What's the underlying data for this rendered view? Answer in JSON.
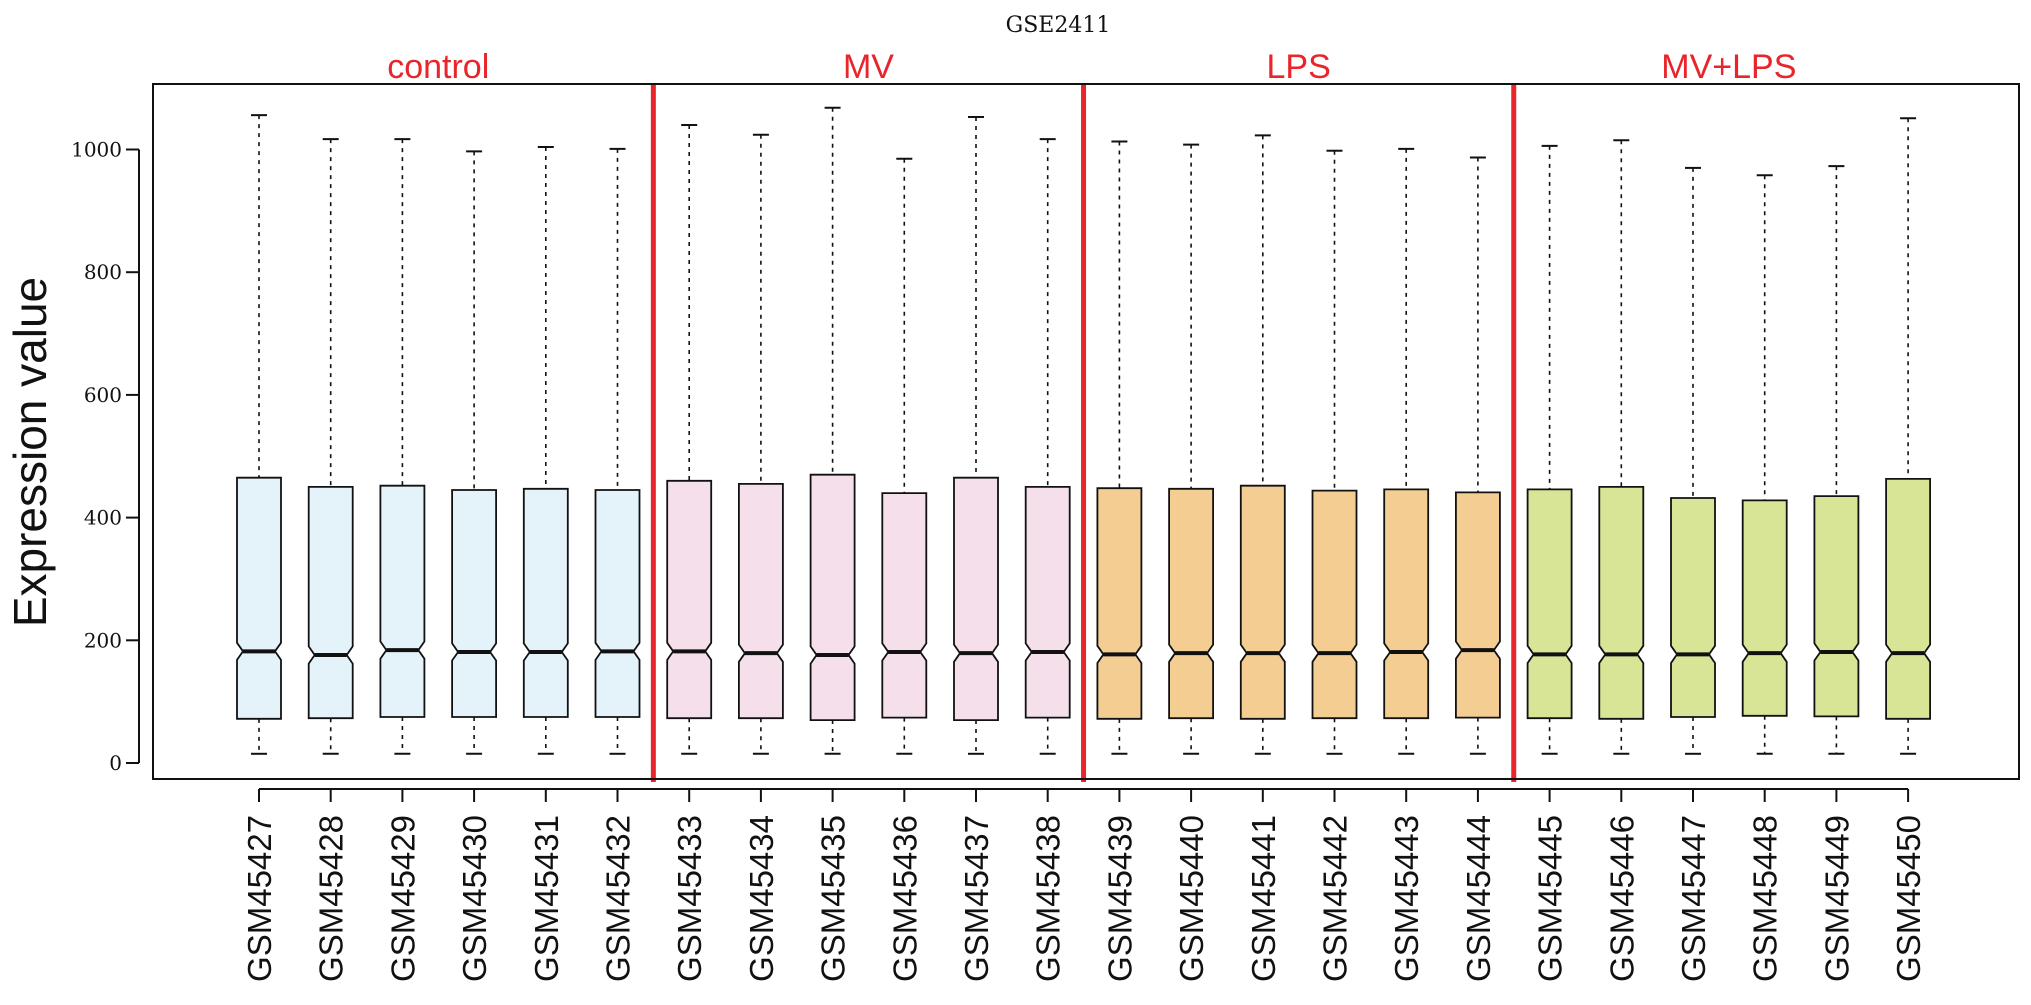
{
  "chart_data": {
    "type": "boxplot",
    "title": "GSE2411",
    "xlabel": "",
    "ylabel": "Expression value",
    "ylim": [
      -25,
      1115
    ],
    "yticks": [
      0,
      200,
      400,
      600,
      800,
      1000
    ],
    "grid": false,
    "legend": "none",
    "notched": true,
    "separator_color": "#e8252b",
    "groups": [
      {
        "label": "control",
        "color": "#e4f3fa",
        "samples": [
          0,
          5
        ]
      },
      {
        "label": "MV",
        "color": "#f4dfeb",
        "samples": [
          6,
          11
        ]
      },
      {
        "label": "LPS",
        "color": "#f4cd93",
        "samples": [
          12,
          17
        ]
      },
      {
        "label": "MV+LPS",
        "color": "#d8e496",
        "samples": [
          18,
          23
        ]
      }
    ],
    "categories": [
      "GSM45427",
      "GSM45428",
      "GSM45429",
      "GSM45430",
      "GSM45431",
      "GSM45432",
      "GSM45433",
      "GSM45434",
      "GSM45435",
      "GSM45436",
      "GSM45437",
      "GSM45438",
      "GSM45439",
      "GSM45440",
      "GSM45441",
      "GSM45442",
      "GSM45443",
      "GSM45444",
      "GSM45445",
      "GSM45446",
      "GSM45447",
      "GSM45448",
      "GSM45449",
      "GSM45450"
    ],
    "boxes": [
      {
        "min": 15,
        "q1": 72,
        "median": 182,
        "q3": 465,
        "max": 1056
      },
      {
        "min": 15,
        "q1": 73,
        "median": 176,
        "q3": 450,
        "max": 1017
      },
      {
        "min": 15,
        "q1": 75,
        "median": 184,
        "q3": 452,
        "max": 1017
      },
      {
        "min": 15,
        "q1": 75,
        "median": 181,
        "q3": 445,
        "max": 997
      },
      {
        "min": 15,
        "q1": 75,
        "median": 181,
        "q3": 447,
        "max": 1004
      },
      {
        "min": 15,
        "q1": 75,
        "median": 182,
        "q3": 445,
        "max": 1001
      },
      {
        "min": 15,
        "q1": 73,
        "median": 182,
        "q3": 460,
        "max": 1040
      },
      {
        "min": 15,
        "q1": 73,
        "median": 179,
        "q3": 455,
        "max": 1024
      },
      {
        "min": 15,
        "q1": 70,
        "median": 176,
        "q3": 470,
        "max": 1068
      },
      {
        "min": 15,
        "q1": 74,
        "median": 181,
        "q3": 440,
        "max": 985
      },
      {
        "min": 15,
        "q1": 70,
        "median": 179,
        "q3": 465,
        "max": 1053
      },
      {
        "min": 15,
        "q1": 74,
        "median": 181,
        "q3": 450,
        "max": 1017
      },
      {
        "min": 15,
        "q1": 72,
        "median": 177,
        "q3": 448,
        "max": 1013
      },
      {
        "min": 15,
        "q1": 73,
        "median": 179,
        "q3": 447,
        "max": 1008
      },
      {
        "min": 15,
        "q1": 72,
        "median": 179,
        "q3": 452,
        "max": 1023
      },
      {
        "min": 15,
        "q1": 73,
        "median": 179,
        "q3": 444,
        "max": 998
      },
      {
        "min": 15,
        "q1": 73,
        "median": 181,
        "q3": 446,
        "max": 1001
      },
      {
        "min": 15,
        "q1": 74,
        "median": 184,
        "q3": 441,
        "max": 987
      },
      {
        "min": 15,
        "q1": 73,
        "median": 177,
        "q3": 446,
        "max": 1006
      },
      {
        "min": 15,
        "q1": 72,
        "median": 177,
        "q3": 450,
        "max": 1015
      },
      {
        "min": 15,
        "q1": 75,
        "median": 177,
        "q3": 432,
        "max": 970
      },
      {
        "min": 15,
        "q1": 77,
        "median": 179,
        "q3": 428,
        "max": 958
      },
      {
        "min": 15,
        "q1": 76,
        "median": 181,
        "q3": 435,
        "max": 973
      },
      {
        "min": 15,
        "q1": 72,
        "median": 179,
        "q3": 463,
        "max": 1051
      }
    ]
  }
}
